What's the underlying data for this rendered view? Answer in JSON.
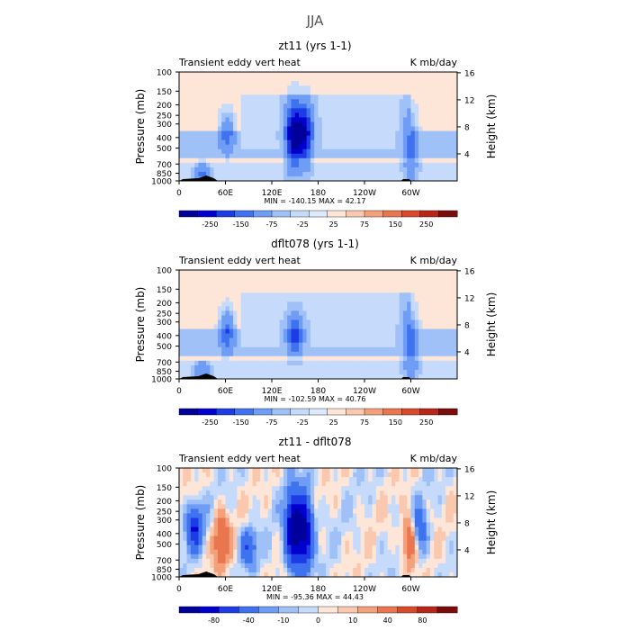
{
  "season_title": "JJA",
  "pressure_label": "Pressure (mb)",
  "height_label": "Height (km)",
  "chart_data": [
    {
      "type": "heatmap",
      "title": "zt11 (yrs 1-1)",
      "left_subtitle": "Transient eddy vert heat",
      "right_subtitle": "K mb/day",
      "ylabel": "Pressure (mb)",
      "y2label": "Height (km)",
      "pressure_ticks": [
        "100",
        "150",
        "200",
        "250",
        "300",
        "400",
        "500",
        "700",
        "850",
        "1000"
      ],
      "height_ticks": [
        "4",
        "8",
        "12",
        "16"
      ],
      "lon_ticks": [
        "0",
        "60E",
        "120E",
        "180",
        "120W",
        "60W"
      ],
      "stats": "MIN = -140.15   MAX =  42.17",
      "colorbar_labels": [
        "-250",
        "-150",
        "-75",
        "-25",
        "25",
        "75",
        "150",
        "250"
      ],
      "features": [
        {
          "lon": 62,
          "pmin": 250,
          "pmax": 500,
          "amp": -60
        },
        {
          "lon": 148,
          "pmin": 220,
          "pmax": 650,
          "amp": -140
        },
        {
          "lon": 163,
          "pmin": 220,
          "pmax": 600,
          "amp": -120
        },
        {
          "lon": 300,
          "pmin": 250,
          "pmax": 900,
          "amp": -50
        },
        {
          "lon": 30,
          "pmin": 750,
          "pmax": 1000,
          "amp": -60
        }
      ]
    },
    {
      "type": "heatmap",
      "title": "dflt078 (yrs 1-1)",
      "left_subtitle": "Transient eddy vert heat",
      "right_subtitle": "K mb/day",
      "ylabel": "Pressure (mb)",
      "y2label": "Height (km)",
      "pressure_ticks": [
        "100",
        "150",
        "200",
        "250",
        "300",
        "400",
        "500",
        "700",
        "850",
        "1000"
      ],
      "height_ticks": [
        "4",
        "8",
        "12",
        "16"
      ],
      "lon_ticks": [
        "0",
        "60E",
        "120E",
        "180",
        "120W",
        "60W"
      ],
      "stats": "MIN = -102.59   MAX =  40.76",
      "colorbar_labels": [
        "-250",
        "-150",
        "-75",
        "-25",
        "25",
        "75",
        "150",
        "250"
      ],
      "features": [
        {
          "lon": 62,
          "pmin": 250,
          "pmax": 500,
          "amp": -70
        },
        {
          "lon": 150,
          "pmin": 300,
          "pmax": 550,
          "amp": -90
        },
        {
          "lon": 300,
          "pmin": 250,
          "pmax": 900,
          "amp": -60
        },
        {
          "lon": 30,
          "pmin": 750,
          "pmax": 1000,
          "amp": -50
        }
      ]
    },
    {
      "type": "heatmap",
      "title": "zt11 - dflt078",
      "left_subtitle": "Transient eddy vert heat",
      "right_subtitle": "K mb/day",
      "ylabel": "Pressure (mb)",
      "y2label": "Height (km)",
      "pressure_ticks": [
        "100",
        "150",
        "200",
        "250",
        "300",
        "400",
        "500",
        "700",
        "850",
        "1000"
      ],
      "height_ticks": [
        "4",
        "8",
        "12",
        "16"
      ],
      "lon_ticks": [
        "0",
        "60E",
        "120E",
        "180",
        "120W",
        "60W"
      ],
      "stats": "MIN = -95.36   MAX =  44.43",
      "colorbar_labels": [
        "-80",
        "-40",
        "-10",
        "0",
        "10",
        "40",
        "80"
      ],
      "features": [
        {
          "lon": 148,
          "pmin": 200,
          "pmax": 700,
          "amp": -95
        },
        {
          "lon": 163,
          "pmin": 200,
          "pmax": 700,
          "amp": -85
        },
        {
          "lon": 20,
          "pmin": 250,
          "pmax": 500,
          "amp": -60
        },
        {
          "lon": 55,
          "pmin": 300,
          "pmax": 700,
          "amp": 40
        },
        {
          "lon": 300,
          "pmin": 300,
          "pmax": 700,
          "amp": 44
        },
        {
          "lon": 90,
          "pmin": 400,
          "pmax": 700,
          "amp": -40
        },
        {
          "lon": 310,
          "pmin": 250,
          "pmax": 600,
          "amp": -40
        }
      ]
    }
  ],
  "colors": {
    "neg": [
      "#00009a",
      "#0000cf",
      "#1e3ce6",
      "#3f72ef",
      "#6f9df5",
      "#9fc1f8",
      "#c6dbfb",
      "#dde9fc"
    ],
    "pos": [
      "#fde6d8",
      "#f9c8ae",
      "#f4a07b",
      "#ea7650",
      "#d94a2b",
      "#b8261a",
      "#7a0c0c"
    ]
  }
}
